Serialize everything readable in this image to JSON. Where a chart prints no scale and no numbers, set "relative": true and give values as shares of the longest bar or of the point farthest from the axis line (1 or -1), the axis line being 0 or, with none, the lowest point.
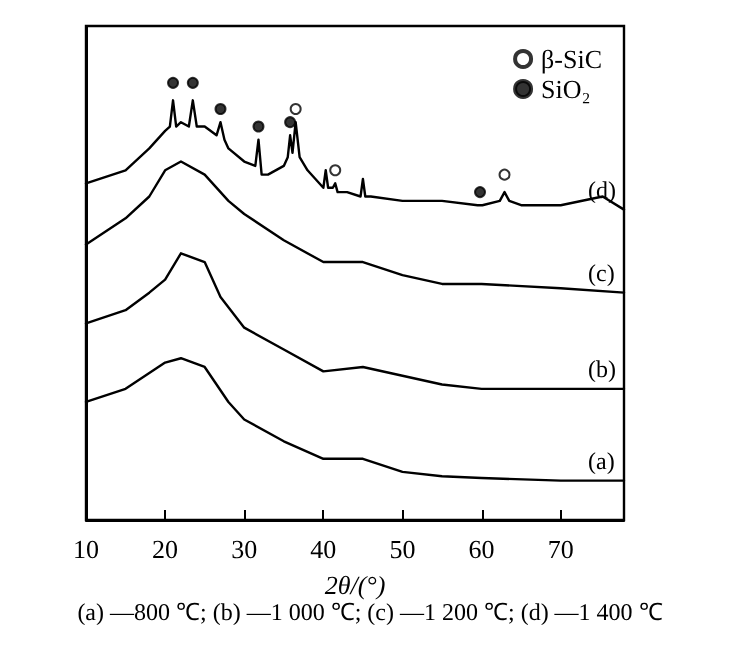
{
  "chart_data": {
    "type": "line",
    "relative": true,
    "xlabel": "2θ/(°)",
    "xlim": [
      10,
      78
    ],
    "xticks": [
      10,
      20,
      30,
      40,
      50,
      60,
      70
    ],
    "grid": false,
    "legend": "top right",
    "marker": "none",
    "line_style": "solid",
    "annotations": [
      "(a) —800 ℃; (b) —1 000 ℃; (c) —1 200 ℃; (d) —1 400 ℃"
    ],
    "series": [
      {
        "name": "(a)",
        "color": "#000000",
        "x": [
          10,
          15,
          20,
          22,
          25,
          28,
          30,
          35,
          40,
          45,
          50,
          55,
          60,
          70,
          78
        ],
        "values": [
          0.27,
          0.3,
          0.36,
          0.37,
          0.35,
          0.27,
          0.23,
          0.18,
          0.14,
          0.14,
          0.11,
          0.1,
          0.096,
          0.09,
          0.09
        ]
      },
      {
        "name": "(b)",
        "color": "#000000",
        "x": [
          10,
          15,
          18,
          20,
          22,
          25,
          27,
          30,
          35,
          40,
          45,
          50,
          55,
          60,
          70,
          78
        ],
        "values": [
          0.45,
          0.48,
          0.52,
          0.55,
          0.61,
          0.59,
          0.51,
          0.44,
          0.39,
          0.34,
          0.35,
          0.33,
          0.31,
          0.3,
          0.3,
          0.3
        ]
      },
      {
        "name": "(c)",
        "color": "#000000",
        "x": [
          10,
          15,
          18,
          20,
          22,
          25,
          28,
          30,
          35,
          40,
          45,
          50,
          55,
          60,
          70,
          78
        ],
        "values": [
          0.63,
          0.69,
          0.74,
          0.8,
          0.82,
          0.79,
          0.73,
          0.7,
          0.64,
          0.59,
          0.59,
          0.56,
          0.54,
          0.54,
          0.53,
          0.52
        ]
      },
      {
        "name": "(d)",
        "color": "#000000",
        "x": [
          10,
          15,
          18,
          20,
          20.6,
          21,
          21.4,
          22,
          23,
          23.5,
          24,
          25,
          26.5,
          27,
          27.5,
          28,
          30,
          31.4,
          31.8,
          32.2,
          33,
          35,
          35.5,
          35.8,
          36.1,
          36.5,
          37,
          38,
          40,
          40.3,
          40.6,
          41.2,
          41.5,
          41.8,
          43,
          44.7,
          45,
          45.3,
          46,
          50,
          55,
          59.5,
          59.8,
          60.1,
          62.3,
          62.9,
          63.5,
          65,
          70,
          75.3,
          78
        ],
        "values": [
          0.77,
          0.8,
          0.85,
          0.89,
          0.9,
          0.96,
          0.9,
          0.91,
          0.9,
          0.96,
          0.9,
          0.9,
          0.88,
          0.91,
          0.87,
          0.85,
          0.82,
          0.81,
          0.87,
          0.79,
          0.79,
          0.81,
          0.83,
          0.88,
          0.84,
          0.91,
          0.83,
          0.8,
          0.76,
          0.8,
          0.76,
          0.76,
          0.77,
          0.75,
          0.75,
          0.74,
          0.78,
          0.74,
          0.74,
          0.73,
          0.73,
          0.72,
          0.72,
          0.72,
          0.73,
          0.75,
          0.73,
          0.72,
          0.72,
          0.74,
          0.71
        ]
      },
      {
        "type": "scatter",
        "name": "β-SiC",
        "color": "#ffffff",
        "marker": "circle",
        "x": [
          36.5,
          41.5,
          62.9
        ],
        "values": [
          0.94,
          0.8,
          0.79
        ]
      },
      {
        "type": "scatter",
        "name": "SiO₂",
        "color": "#000000",
        "marker": "circle",
        "x": [
          21,
          23.5,
          27,
          31.8,
          35.8,
          59.8
        ],
        "values": [
          1.0,
          1.0,
          0.94,
          0.9,
          0.91,
          0.75
        ]
      }
    ]
  }
}
